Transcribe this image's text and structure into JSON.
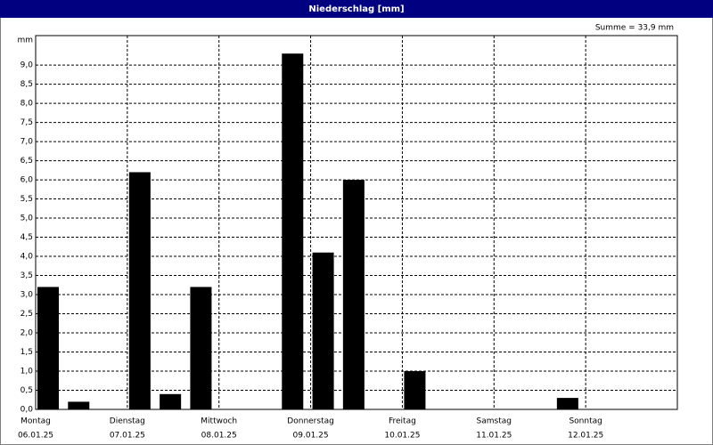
{
  "chart_data": {
    "type": "bar",
    "title": "Niederschlag [mm]",
    "annotation": "Summe = 33,9 mm",
    "y_label": "mm",
    "x_labels": [
      {
        "day": "Montag",
        "date": "06.01.25"
      },
      {
        "day": "Dienstag",
        "date": "07.01.25"
      },
      {
        "day": "Mittwoch",
        "date": "08.01.25"
      },
      {
        "day": "Donnerstag",
        "date": "09.01.25"
      },
      {
        "day": "Freitag",
        "date": "10.01.25"
      },
      {
        "day": "Samstag",
        "date": "11.01.25"
      },
      {
        "day": "Sonntag",
        "date": "12.01.25"
      }
    ],
    "values": [
      3.2,
      0.2,
      0,
      6.2,
      0.4,
      3.2,
      0,
      0,
      9.3,
      4.1,
      6.0,
      0,
      1.0,
      0,
      0,
      0,
      0,
      0.3,
      0,
      0,
      0
    ],
    "color": "#000000",
    "ylim": [
      0,
      9.77
    ],
    "yticks": [
      {
        "value": 0,
        "label": "0,0"
      },
      {
        "value": 0.5,
        "label": "0,5"
      },
      {
        "value": 1,
        "label": "1,0"
      },
      {
        "value": 1.5,
        "label": "1,5"
      },
      {
        "value": 2,
        "label": "2,0"
      },
      {
        "value": 2.5,
        "label": "2,5"
      },
      {
        "value": 3,
        "label": "3,0"
      },
      {
        "value": 3.5,
        "label": "3,5"
      },
      {
        "value": 4,
        "label": "4,0"
      },
      {
        "value": 4.5,
        "label": "4,5"
      },
      {
        "value": 5,
        "label": "5,0"
      },
      {
        "value": 5.5,
        "label": "5,5"
      },
      {
        "value": 6,
        "label": "6,0"
      },
      {
        "value": 6.5,
        "label": "6,5"
      },
      {
        "value": 7,
        "label": "7,0"
      },
      {
        "value": 7.5,
        "label": "7,5"
      },
      {
        "value": 8,
        "label": "8,0"
      },
      {
        "value": 8.5,
        "label": "8,5"
      },
      {
        "value": 9,
        "label": "9,0"
      }
    ],
    "grid": true
  }
}
